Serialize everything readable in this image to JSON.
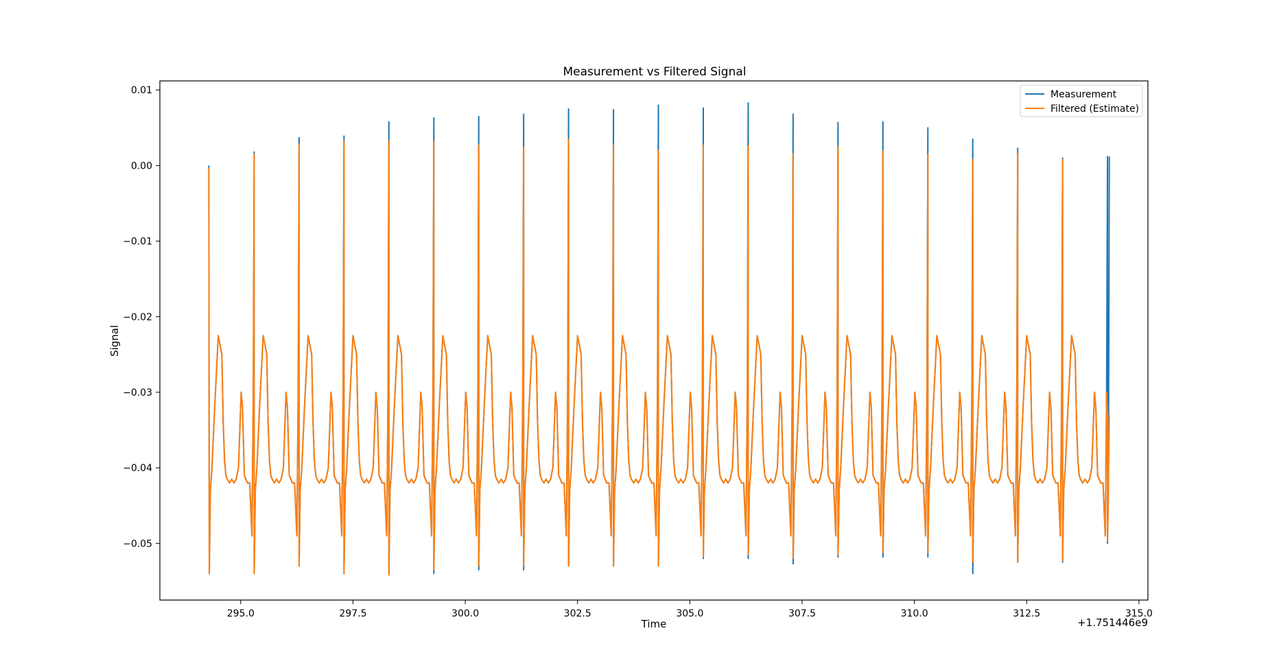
{
  "chart_data": {
    "type": "line",
    "title": "Measurement vs Filtered Signal",
    "xlabel": "Time",
    "ylabel": "Signal",
    "x_offset_label": "+1.751446e9",
    "xlim": [
      293.2,
      315.2
    ],
    "ylim": [
      -0.0575,
      0.0112
    ],
    "x_ticks": [
      295.0,
      297.5,
      300.0,
      302.5,
      305.0,
      307.5,
      310.0,
      312.5,
      315.0
    ],
    "x_tick_labels": [
      "295.0",
      "297.5",
      "300.0",
      "302.5",
      "305.0",
      "307.5",
      "310.0",
      "312.5",
      "315.0"
    ],
    "y_ticks": [
      0.01,
      0.0,
      -0.01,
      -0.02,
      -0.03,
      -0.04,
      -0.05
    ],
    "y_tick_labels": [
      "0.01",
      "0.00",
      "−0.01",
      "−0.02",
      "−0.03",
      "−0.04",
      "−0.05"
    ],
    "grid": false,
    "legend_position": "top-right",
    "beat_template": {
      "x_offset": [
        0.0,
        0.025,
        0.06,
        0.12,
        0.2,
        0.28,
        0.31,
        0.34,
        0.37,
        0.4,
        0.45,
        0.5,
        0.55,
        0.6,
        0.65,
        0.68,
        0.71,
        0.74,
        0.78,
        0.85,
        0.9,
        0.95,
        0.98,
        1.0
      ],
      "y": [
        -0.054,
        -0.043,
        -0.04,
        -0.032,
        -0.0225,
        -0.025,
        -0.034,
        -0.039,
        -0.041,
        -0.0415,
        -0.042,
        -0.0415,
        -0.042,
        -0.0415,
        -0.04,
        -0.035,
        -0.03,
        -0.032,
        -0.041,
        -0.042,
        -0.042,
        -0.049,
        -0.03,
        0.001
      ]
    },
    "series": [
      {
        "name": "Measurement",
        "color": "#1f77b4",
        "beat_times": [
          294.3,
          295.3,
          296.3,
          297.3,
          298.3,
          299.3,
          300.3,
          301.3,
          302.3,
          303.3,
          304.3,
          305.3,
          306.3,
          307.3,
          308.3,
          309.3,
          310.3,
          311.3,
          312.3,
          313.3,
          314.3
        ],
        "peaks": [
          0.0,
          0.0018,
          0.0037,
          0.0039,
          0.0058,
          0.0063,
          0.0065,
          0.0068,
          0.0075,
          0.0074,
          0.008,
          0.0076,
          0.0083,
          0.0068,
          0.0057,
          0.0058,
          0.005,
          0.0035,
          0.0023,
          0.001,
          0.0012
        ],
        "troughs": [
          -0.054,
          -0.054,
          -0.053,
          -0.054,
          -0.054,
          -0.054,
          -0.0535,
          -0.0535,
          -0.053,
          -0.053,
          -0.053,
          -0.052,
          -0.052,
          -0.0527,
          -0.0518,
          -0.0518,
          -0.0518,
          -0.054,
          -0.0525,
          -0.0525,
          -0.05
        ]
      },
      {
        "name": "Filtered (Estimate)",
        "color": "#ff7f0e",
        "beat_times": [
          294.3,
          295.3,
          296.3,
          297.3,
          298.3,
          299.3,
          300.3,
          301.3,
          302.3,
          303.3,
          304.3,
          305.3,
          306.3,
          307.3,
          308.3,
          309.3,
          310.3,
          311.3,
          312.3,
          313.3,
          314.3
        ],
        "peaks": [
          -0.0003,
          0.0015,
          0.0028,
          0.0032,
          0.0033,
          0.0032,
          0.0027,
          0.0024,
          0.0035,
          0.0027,
          0.002,
          0.0027,
          0.0026,
          0.0016,
          0.0025,
          0.0019,
          0.0015,
          0.0008,
          0.0016,
          0.0008,
          -0.033
        ],
        "troughs": [
          -0.054,
          -0.054,
          -0.053,
          -0.054,
          -0.0542,
          -0.0535,
          -0.053,
          -0.053,
          -0.053,
          -0.053,
          -0.053,
          -0.0518,
          -0.0515,
          -0.052,
          -0.0515,
          -0.0512,
          -0.0512,
          -0.0525,
          -0.0525,
          -0.0523,
          -0.0497
        ]
      }
    ]
  }
}
